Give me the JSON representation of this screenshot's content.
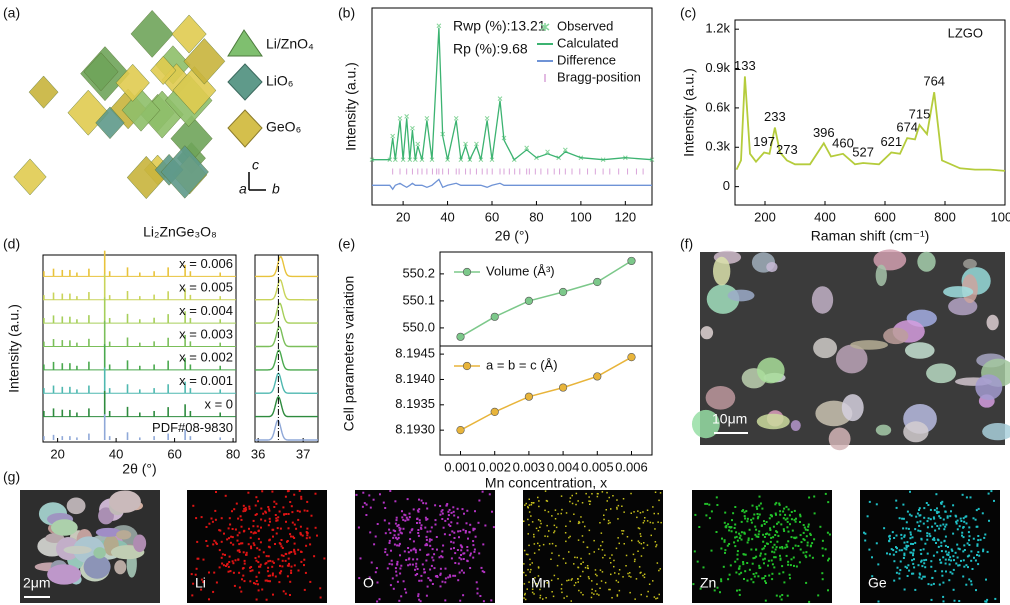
{
  "panel_labels": [
    "(a)",
    "(b)",
    "(c)",
    "(d)",
    "(e)",
    "(f)",
    "(g)"
  ],
  "structure": {
    "legend": [
      "Li/ZnO₄",
      "LiO₆",
      "GeO₆"
    ],
    "axes": [
      "c",
      "a",
      "b"
    ],
    "caption": "Li₂ZnGe₃O₈"
  },
  "sem": {
    "scale_bar": "10μm"
  },
  "mapping": {
    "scale_bar": "2μm",
    "elements": [
      "Li",
      "O",
      "Mn",
      "Zn",
      "Ge"
    ],
    "colors": [
      "#e01414",
      "#b433c4",
      "#c9c21c",
      "#22c22a",
      "#1fc0c6"
    ]
  },
  "chart_data": [
    {
      "type": "rietveld",
      "xlabel": "2θ (°)",
      "ylabel": "Intensity (a.u.)",
      "xlim": [
        6,
        132
      ],
      "xticks": [
        20,
        40,
        60,
        80,
        100,
        120
      ],
      "ylim": [
        0,
        100
      ],
      "annotations": [
        "Rwp (%):13.21",
        "Rp (%):9.68"
      ],
      "x": [
        6,
        14,
        15.3,
        16.5,
        18.6,
        20,
        21.6,
        23,
        24.2,
        25.5,
        26.6,
        28.5,
        30.7,
        33,
        36.1,
        37.8,
        40,
        43.9,
        46,
        48.1,
        50,
        53,
        55,
        57.8,
        60,
        63.6,
        65.4,
        70,
        75.6,
        80,
        85,
        90,
        93,
        100,
        110,
        120,
        132
      ],
      "series": [
        {
          "name": "Observed",
          "color": "#86d49a",
          "marker": "x",
          "values": [
            23,
            23,
            35,
            23,
            44,
            23,
            45,
            23,
            39,
            23,
            31,
            23,
            44,
            23,
            91,
            36,
            23,
            44,
            23,
            31,
            23,
            31,
            23,
            44,
            23,
            54,
            34,
            23,
            29,
            24,
            27,
            24,
            28,
            24,
            23,
            24,
            23
          ]
        },
        {
          "name": "Calculated",
          "color": "#3cb371",
          "values": [
            23,
            23,
            34,
            23,
            43,
            23,
            44,
            23,
            38,
            23,
            30,
            23,
            43,
            23,
            90,
            35,
            23,
            43,
            23,
            30,
            23,
            30,
            23,
            43,
            23,
            53,
            33,
            23,
            28,
            24,
            26,
            24,
            27,
            24,
            23,
            24,
            23
          ]
        },
        {
          "name": "Difference",
          "color": "#6f93d6",
          "values": [
            10,
            10,
            8,
            10,
            11,
            10,
            9,
            10,
            11,
            10,
            10,
            10,
            9,
            10,
            13,
            9,
            10,
            11,
            10,
            10,
            10,
            10,
            10,
            9,
            10,
            11,
            10,
            10,
            10,
            10,
            10,
            10,
            10,
            10,
            10,
            10,
            10
          ]
        }
      ],
      "bragg": {
        "name": "Bragg-position",
        "color": "#d9a3d9",
        "y": 17,
        "x": [
          15.3,
          18.6,
          21.6,
          24.2,
          26.6,
          28.5,
          30.7,
          33.2,
          35.1,
          36.1,
          37.8,
          40.4,
          43.9,
          45.2,
          48.1,
          50.2,
          53,
          55.6,
          57.8,
          60.1,
          63.6,
          65.4,
          67.8,
          70.2,
          72.5,
          75.6,
          76.8,
          79.5,
          82,
          85.1,
          88,
          90.4,
          93,
          96,
          99.5,
          103,
          106.5,
          110,
          113,
          117,
          121,
          125,
          128
        ]
      }
    },
    {
      "type": "line",
      "xlabel": "Raman shift (cm⁻¹)",
      "ylabel": "Intensity (a.u.)",
      "xlim": [
        100,
        1000
      ],
      "xticks": [
        200,
        400,
        600,
        800,
        1000
      ],
      "ylim": [
        -140,
        1270
      ],
      "yticks": [
        0,
        {
          "value": 300,
          "label": "0.3k"
        },
        {
          "value": 600,
          "label": "0.6k"
        },
        {
          "value": 900,
          "label": "0.9k"
        },
        {
          "value": 1200,
          "label": "1.2k"
        }
      ],
      "x": [
        105,
        120,
        133,
        150,
        170,
        197,
        215,
        233,
        250,
        273,
        300,
        350,
        396,
        420,
        460,
        500,
        527,
        580,
        621,
        650,
        674,
        700,
        715,
        740,
        764,
        790,
        850,
        900,
        950,
        1000
      ],
      "series": [
        {
          "name": "LZGO",
          "color": "#b5cc3c",
          "values": [
            130,
            200,
            840,
            250,
            190,
            260,
            250,
            450,
            260,
            200,
            170,
            170,
            330,
            230,
            250,
            170,
            180,
            170,
            260,
            250,
            370,
            360,
            470,
            400,
            720,
            200,
            140,
            130,
            130,
            120
          ]
        }
      ],
      "peaks": [
        133,
        197,
        233,
        273,
        396,
        460,
        527,
        621,
        674,
        715,
        764
      ]
    },
    {
      "type": "waterfall",
      "xlabel": "2θ (°)",
      "ylabel": "Intensity (a.u.)",
      "xlim": [
        15,
        81
      ],
      "xticks": [
        20,
        40,
        60,
        80
      ],
      "peaks": [
        15.3,
        18.6,
        21.6,
        24.2,
        26.6,
        30.7,
        36.1,
        37.8,
        43.9,
        48.1,
        53,
        57.8,
        63.6,
        65.4,
        75.6
      ],
      "series": [
        {
          "name": "x = 0.006",
          "color": "#e8c33b",
          "values": [
            20,
            30,
            25,
            25,
            15,
            30,
            100,
            20,
            35,
            15,
            20,
            35,
            45,
            20,
            15
          ]
        },
        {
          "name": "x = 0.005",
          "color": "#c9d45a",
          "values": [
            18,
            28,
            24,
            24,
            14,
            30,
            100,
            18,
            34,
            14,
            20,
            33,
            44,
            19,
            14
          ]
        },
        {
          "name": "x = 0.004",
          "color": "#a6cf5a",
          "values": [
            20,
            30,
            26,
            25,
            15,
            31,
            100,
            20,
            36,
            15,
            21,
            35,
            46,
            20,
            15
          ]
        },
        {
          "name": "x = 0.003",
          "color": "#7bbf5a",
          "values": [
            19,
            29,
            25,
            24,
            15,
            30,
            100,
            19,
            35,
            15,
            20,
            34,
            45,
            20,
            15
          ]
        },
        {
          "name": "x = 0.002",
          "color": "#4aa94e",
          "values": [
            21,
            31,
            26,
            26,
            16,
            32,
            100,
            21,
            37,
            16,
            21,
            36,
            47,
            21,
            16
          ]
        },
        {
          "name": "x = 0.001",
          "color": "#4fb8b0",
          "values": [
            20,
            30,
            25,
            25,
            15,
            30,
            100,
            20,
            35,
            15,
            20,
            35,
            45,
            20,
            15
          ]
        },
        {
          "name": "x = 0",
          "color": "#2e8b3e",
          "values": [
            22,
            32,
            27,
            26,
            16,
            32,
            100,
            22,
            38,
            16,
            22,
            37,
            48,
            22,
            16
          ]
        },
        {
          "name": "PDF#08-9830",
          "color": "#8fa8d8",
          "values": [
            15,
            20,
            15,
            15,
            10,
            25,
            100,
            15,
            30,
            10,
            15,
            25,
            40,
            15,
            10
          ]
        }
      ],
      "inset": {
        "xlim": [
          35.93,
          37.33
        ],
        "xticks": [
          36,
          37
        ],
        "reference": 36.45,
        "centers": [
          36.5,
          36.49,
          36.48,
          36.47,
          36.46,
          36.45,
          36.45,
          36.44
        ]
      }
    },
    {
      "type": "multipanel",
      "xlabel": "Mn concentration, x",
      "ylabel": "Cell parameters variation",
      "xlim": [
        0.0004,
        0.0066
      ],
      "xticks": [
        0.001,
        0.002,
        0.003,
        0.004,
        0.005,
        0.006
      ],
      "x": [
        0.001,
        0.002,
        0.003,
        0.004,
        0.005,
        0.006
      ],
      "panels": [
        {
          "name": "Volume (Å³)",
          "color": "#7cc88a",
          "ylim": [
            549.933,
            550.281
          ],
          "yticks": [
            {
              "value": 550,
              "label": "550.0"
            },
            550.1,
            550.2
          ],
          "values": [
            549.967,
            550.041,
            550.1,
            550.133,
            550.17,
            550.248
          ]
        },
        {
          "name": "a = b = c (Å)",
          "color": "#e8b43a",
          "ylim": [
            8.19251,
            8.19466
          ],
          "yticks": [
            {
              "value": 8.193,
              "label": "8.1930"
            },
            8.1935,
            {
              "value": 8.194,
              "label": "8.1940"
            },
            8.1945
          ],
          "values": [
            8.193,
            8.19336,
            8.19366,
            8.19384,
            8.19406,
            8.19444
          ]
        }
      ]
    }
  ]
}
